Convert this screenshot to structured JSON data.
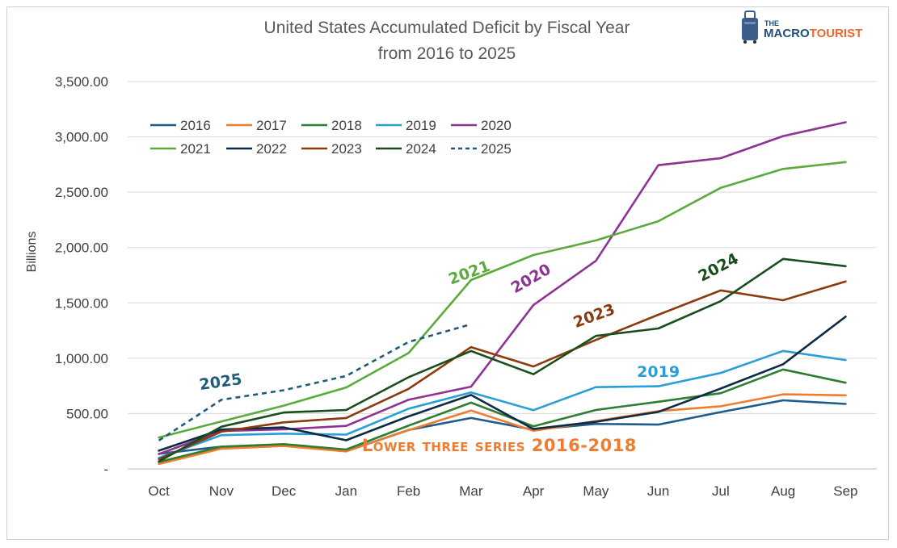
{
  "chart_data": {
    "type": "line",
    "title": "United States Accumulated Deficit by Fiscal Year",
    "subtitle": "from 2016 to 2025",
    "ylabel": "Billions",
    "xlabel": "",
    "ylim": [
      0,
      3500
    ],
    "yticks": [
      0,
      500,
      1000,
      1500,
      2000,
      2500,
      3000,
      3500
    ],
    "ytick_labels": [
      "-",
      "500.00",
      "1,000.00",
      "1,500.00",
      "2,000.00",
      "2,500.00",
      "3,000.00",
      "3,500.00"
    ],
    "grid": true,
    "legend_position": "top-left",
    "categories": [
      "Oct",
      "Nov",
      "Dec",
      "Jan",
      "Feb",
      "Mar",
      "Apr",
      "May",
      "Jun",
      "Jul",
      "Aug",
      "Sep"
    ],
    "series": [
      {
        "name": "2016",
        "color": "#1f5c8b",
        "dashed": false,
        "values": [
          136,
          201,
          215,
          160,
          352,
          460,
          355,
          407,
          400,
          513,
          620,
          587
        ]
      },
      {
        "name": "2017",
        "color": "#ed7d31",
        "dashed": false,
        "values": [
          45,
          183,
          207,
          158,
          350,
          527,
          344,
          432,
          522,
          566,
          674,
          665
        ]
      },
      {
        "name": "2018",
        "color": "#2e7d32",
        "dashed": false,
        "values": [
          63,
          201,
          224,
          175,
          391,
          599,
          385,
          532,
          607,
          684,
          898,
          779
        ]
      },
      {
        "name": "2019",
        "color": "#2a9fd6",
        "dashed": false,
        "values": [
          100,
          305,
          319,
          310,
          544,
          691,
          531,
          739,
          747,
          867,
          1066,
          984
        ]
      },
      {
        "name": "2020",
        "color": "#8e3393",
        "dashed": false,
        "values": [
          134,
          342,
          357,
          389,
          625,
          743,
          1481,
          1880,
          2744,
          2807,
          3007,
          3132
        ]
      },
      {
        "name": "2021",
        "color": "#5aab3c",
        "dashed": false,
        "values": [
          284,
          429,
          572,
          736,
          1047,
          1706,
          1932,
          2064,
          2238,
          2540,
          2710,
          2772
        ]
      },
      {
        "name": "2022",
        "color": "#0d2b45",
        "dashed": false,
        "values": [
          165,
          356,
          375,
          259,
          475,
          668,
          360,
          426,
          515,
          726,
          946,
          1375
        ]
      },
      {
        "name": "2023",
        "color": "#8b3a0f",
        "dashed": false,
        "values": [
          88,
          336,
          421,
          460,
          723,
          1100,
          925,
          1165,
          1393,
          1613,
          1524,
          1694
        ]
      },
      {
        "name": "2024",
        "color": "#1a4d1c",
        "dashed": false,
        "values": [
          67,
          381,
          510,
          532,
          828,
          1065,
          855,
          1202,
          1269,
          1516,
          1897,
          1832
        ]
      },
      {
        "name": "2025",
        "color": "#1f5c7a",
        "dashed": true,
        "values": [
          257,
          624,
          711,
          840,
          1147,
          1307,
          null,
          null,
          null,
          null,
          null,
          null
        ]
      }
    ],
    "annotations": [
      {
        "text": "2021",
        "color": "#5aab3c",
        "x": "Mar",
        "y": 1730,
        "rotate": -20
      },
      {
        "text": "2020",
        "color": "#8e3393",
        "x": "Apr",
        "y": 1680,
        "rotate": -30
      },
      {
        "text": "2024",
        "color": "#1a4d1c",
        "x": "Jul",
        "y": 1780,
        "rotate": -28
      },
      {
        "text": "2023",
        "color": "#8b3a0f",
        "x": "May",
        "y": 1340,
        "rotate": -20
      },
      {
        "text": "2019",
        "color": "#2a9fd6",
        "x": "Jun",
        "y": 830,
        "rotate": 0
      },
      {
        "text": "2025",
        "color": "#1f5c7a",
        "x": "Nov",
        "y": 740,
        "rotate": -8
      },
      {
        "text": "Lower three series 2016-2018",
        "color": "#ed7d31",
        "x": "Mar",
        "y": 160,
        "rotate": 0
      }
    ]
  },
  "logo": {
    "prefix": "THE",
    "part1": "MACRO",
    "part2": "TOURIST",
    "color1": "#1f4e79",
    "color2": "#e86a2b"
  }
}
